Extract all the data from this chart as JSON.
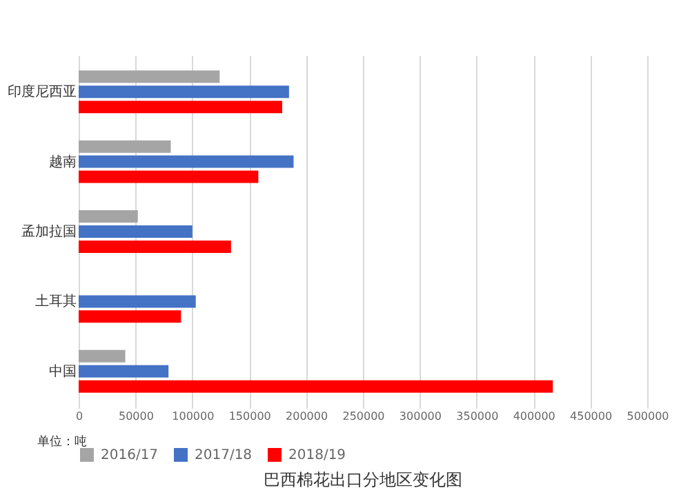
{
  "chart_data": {
    "type": "bar",
    "orientation": "horizontal",
    "title": "巴西棉花出口分地区变化图",
    "categories": [
      "印度尼西亚",
      "越南",
      "孟加拉国",
      "土耳其",
      "中国"
    ],
    "series": [
      {
        "name": "2016/17",
        "color": "#a5a5a5",
        "values": [
          124000,
          81000,
          52000,
          null,
          41000
        ]
      },
      {
        "name": "2017/18",
        "color": "#4472c4",
        "values": [
          185000,
          189000,
          100000,
          103000,
          79000
        ]
      },
      {
        "name": "2018/19",
        "color": "#ff0000",
        "values": [
          179000,
          158000,
          134000,
          90000,
          417000
        ]
      }
    ],
    "xlim": [
      0,
      500000
    ],
    "xticks": [
      0,
      50000,
      100000,
      150000,
      200000,
      250000,
      300000,
      350000,
      400000,
      450000,
      500000
    ],
    "grid": "x",
    "legend": "bottom",
    "annotations": [
      "单位：吨"
    ]
  }
}
